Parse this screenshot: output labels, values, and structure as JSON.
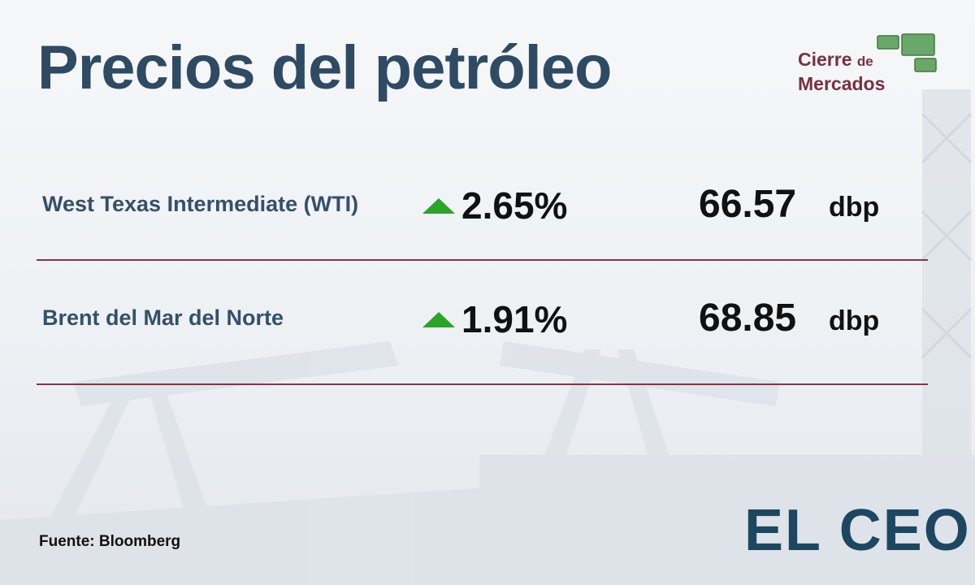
{
  "header": {
    "title": "Precios del petróleo",
    "badge": {
      "line1": "Cierre",
      "small": "de",
      "line2": "Mercados"
    }
  },
  "table": {
    "rows": [
      [
        "West Texas Intermediate (WTI)",
        "2.65%",
        "66.57",
        "dbp"
      ],
      [
        "Brent del Mar del Norte",
        "1.91%",
        "68.85",
        "dbp"
      ]
    ]
  },
  "footer": {
    "source": "Fuente: Bloomberg",
    "brand": "EL CEO"
  }
}
